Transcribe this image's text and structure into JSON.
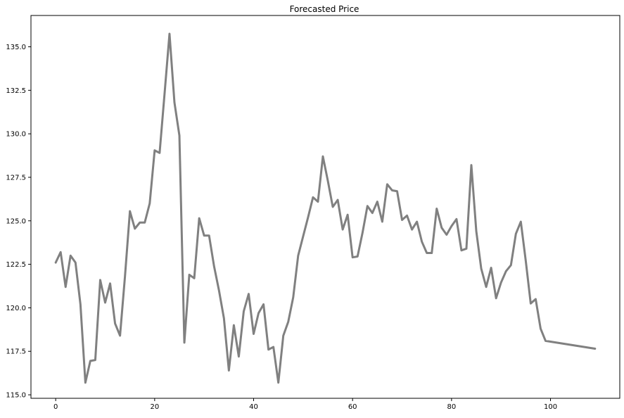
{
  "chart_data": {
    "type": "line",
    "title": "Forecasted Price",
    "xlabel": "",
    "ylabel": "",
    "xlim": [
      -5,
      114
    ],
    "ylim": [
      114.8,
      136.8
    ],
    "xticks": [
      0,
      20,
      40,
      60,
      80,
      100
    ],
    "yticks": [
      115.0,
      117.5,
      120.0,
      122.5,
      125.0,
      127.5,
      130.0,
      132.5,
      135.0
    ],
    "xtick_labels": [
      "0",
      "20",
      "40",
      "60",
      "80",
      "100"
    ],
    "ytick_labels": [
      "115.0",
      "117.5",
      "120.0",
      "122.5",
      "125.0",
      "127.5",
      "130.0",
      "132.5",
      "135.0"
    ],
    "grid": false,
    "legend": "none",
    "series": [
      {
        "color": "#808080",
        "x": [
          0,
          1,
          2,
          3,
          4,
          5,
          6,
          7,
          8,
          9,
          10,
          11,
          12,
          13,
          14,
          15,
          16,
          17,
          18,
          19,
          20,
          21,
          22,
          23,
          24,
          25,
          26,
          27,
          28,
          29,
          30,
          31,
          32,
          33,
          34,
          35,
          36,
          37,
          38,
          39,
          40,
          41,
          42,
          43,
          44,
          45,
          46,
          47,
          48,
          49,
          50,
          51,
          52,
          53,
          54,
          55,
          56,
          57,
          58,
          59,
          60,
          61,
          62,
          63,
          64,
          65,
          66,
          67,
          68,
          69,
          70,
          71,
          72,
          73,
          74,
          75,
          76,
          77,
          78,
          79,
          80,
          81,
          82,
          83,
          84,
          85,
          86,
          87,
          88,
          89,
          90,
          91,
          92,
          93,
          94,
          95,
          96,
          97,
          98,
          99,
          109
        ],
        "y": [
          122.6,
          123.2,
          121.2,
          123.0,
          122.6,
          120.2,
          115.7,
          116.95,
          117.0,
          121.6,
          120.3,
          121.4,
          119.1,
          118.4,
          121.8,
          125.55,
          124.55,
          124.9,
          124.9,
          126.0,
          129.05,
          128.9,
          132.3,
          135.75,
          131.8,
          129.9,
          118.0,
          121.9,
          121.7,
          125.15,
          124.15,
          124.15,
          122.4,
          121.0,
          119.4,
          116.4,
          119.0,
          117.2,
          119.8,
          120.8,
          118.5,
          119.7,
          120.2,
          117.6,
          117.75,
          115.7,
          118.4,
          119.2,
          120.6,
          123.0,
          124.1,
          125.2,
          126.35,
          126.1,
          128.7,
          127.3,
          125.8,
          126.2,
          124.5,
          125.35,
          122.9,
          122.95,
          124.3,
          125.85,
          125.45,
          126.1,
          124.95,
          127.1,
          126.75,
          126.7,
          125.05,
          125.3,
          124.5,
          124.95,
          123.8,
          123.15,
          123.15,
          125.7,
          124.6,
          124.2,
          124.7,
          125.1,
          123.3,
          123.4,
          128.2,
          124.4,
          122.25,
          121.2,
          122.3,
          120.55,
          121.45,
          122.1,
          122.45,
          124.25,
          124.95,
          122.7,
          120.25,
          120.5,
          118.8,
          118.1,
          117.65
        ]
      }
    ]
  }
}
